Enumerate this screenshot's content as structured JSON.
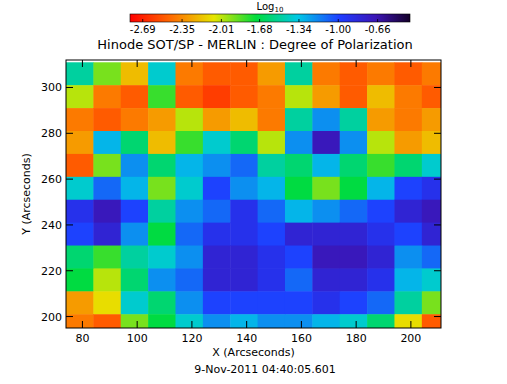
{
  "chart_data": {
    "type": "heatmap",
    "title": "Hinode SOT/SP - MERLIN : Degree of Polarization",
    "xlabel": "X (Arcseconds)",
    "ylabel": "Y (Arcseconds)",
    "annotation": "9-Nov-2011 04:40:05.601",
    "colorbar_label": "Log10",
    "clim": [
      -2.8,
      -0.38
    ],
    "cticks": [
      -2.69,
      -2.35,
      -2.01,
      -1.68,
      -1.34,
      -1.0,
      -0.66
    ],
    "xlim": [
      74,
      211
    ],
    "ylim": [
      195,
      312
    ],
    "xticks": [
      80,
      100,
      120,
      140,
      160,
      180,
      200
    ],
    "yticks": [
      200,
      220,
      240,
      260,
      280,
      300
    ],
    "x": [
      79,
      89,
      99,
      109,
      119,
      129,
      139,
      149,
      159,
      169,
      179,
      189,
      199,
      209
    ],
    "y": [
      306,
      296,
      286,
      276,
      266,
      256,
      246,
      236,
      226,
      216,
      206,
      196
    ],
    "cells": [
      [
        -1.5,
        -1.9,
        -2.2,
        -1.4,
        -2.4,
        -2.5,
        -2.5,
        -2.3,
        -1.5,
        -2.4,
        -2.5,
        -2.4,
        -2.5,
        -2.4
      ],
      [
        -2.0,
        -2.4,
        -2.5,
        -1.8,
        -2.5,
        -2.6,
        -2.5,
        -2.4,
        -2.0,
        -2.3,
        -2.5,
        -2.2,
        -2.4,
        -2.5
      ],
      [
        -2.4,
        -2.5,
        -2.4,
        -2.3,
        -2.0,
        -2.3,
        -2.2,
        -2.4,
        -1.5,
        -1.2,
        -1.5,
        -2.3,
        -2.4,
        -2.3
      ],
      [
        -2.3,
        -1.3,
        -1.6,
        -2.2,
        -1.8,
        -1.4,
        -1.6,
        -2.0,
        -1.2,
        -0.7,
        -1.2,
        -2.0,
        -2.3,
        -2.2
      ],
      [
        -2.5,
        -1.9,
        -1.2,
        -1.6,
        -1.3,
        -1.2,
        -1.1,
        -1.5,
        -1.6,
        -1.3,
        -1.6,
        -1.8,
        -1.6,
        -1.4
      ],
      [
        -1.4,
        -1.1,
        -1.3,
        -1.9,
        -1.4,
        -1.0,
        -1.2,
        -1.3,
        -1.7,
        -1.9,
        -1.7,
        -1.3,
        -1.0,
        -0.9
      ],
      [
        -0.9,
        -0.7,
        -1.0,
        -1.5,
        -1.2,
        -1.1,
        -0.9,
        -1.1,
        -1.3,
        -1.2,
        -1.1,
        -1.0,
        -0.8,
        -0.7
      ],
      [
        -1.0,
        -0.8,
        -1.2,
        -1.7,
        -1.1,
        -0.9,
        -0.9,
        -1.0,
        -0.8,
        -0.8,
        -0.8,
        -0.9,
        -1.0,
        -0.8
      ],
      [
        -1.6,
        -1.8,
        -1.5,
        -1.4,
        -1.2,
        -0.8,
        -0.8,
        -0.9,
        -1.0,
        -0.7,
        -0.7,
        -0.8,
        -1.2,
        -1.1
      ],
      [
        -1.7,
        -2.0,
        -1.6,
        -1.2,
        -1.1,
        -0.8,
        -0.8,
        -0.9,
        -1.1,
        -0.8,
        -0.8,
        -0.9,
        -1.3,
        -1.4
      ],
      [
        -2.3,
        -2.1,
        -1.4,
        -1.6,
        -1.2,
        -1.0,
        -1.0,
        -1.0,
        -1.0,
        -0.9,
        -1.0,
        -1.1,
        -1.5,
        -1.9
      ],
      [
        -2.4,
        -2.5,
        -1.9,
        -1.7,
        -1.4,
        -1.2,
        -1.3,
        -1.2,
        -1.2,
        -1.3,
        -1.4,
        -1.6,
        -2.1,
        -2.5
      ]
    ]
  }
}
